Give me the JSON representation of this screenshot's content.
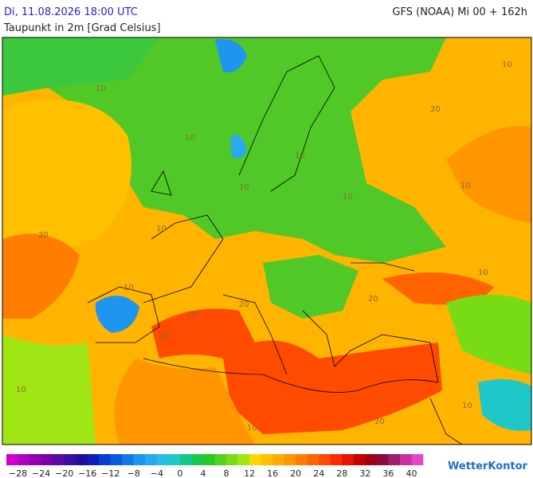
{
  "header": {
    "datetime": "Di, 11.08.2026 18:00 UTC",
    "model": "GFS (NOAA) Mi 00 + 162h",
    "parameter": "Taupunkt in 2m [Grad Celsius]"
  },
  "map": {
    "contour_labels": [
      "10",
      "10",
      "10",
      "10",
      "10",
      "10",
      "10",
      "10",
      "10",
      "10",
      "20",
      "20",
      "20",
      "20",
      "10",
      "10",
      "10",
      "20",
      "10",
      "10"
    ]
  },
  "colorbar": {
    "labels": [
      "−28",
      "−24",
      "−20",
      "−16",
      "−12",
      "−8",
      "−4",
      "0",
      "4",
      "8",
      "12",
      "16",
      "20",
      "24",
      "28",
      "32",
      "36",
      "40"
    ],
    "colors": [
      "#d100d1",
      "#b000c0",
      "#9400b0",
      "#7a00a6",
      "#5e0aa0",
      "#3a0f9e",
      "#1e109c",
      "#0a20b8",
      "#0a3cd0",
      "#0a5ae0",
      "#1478e8",
      "#1e96f0",
      "#28aaf0",
      "#28bde6",
      "#1ec8c8",
      "#14c88c",
      "#14c850",
      "#28c828",
      "#50d21e",
      "#78dc14",
      "#a0e614",
      "#ffd700",
      "#ffc000",
      "#ffaa00",
      "#ff9600",
      "#ff7d00",
      "#ff6400",
      "#ff4b00",
      "#ff2800",
      "#e61400",
      "#c80000",
      "#a00014",
      "#8c0a3c",
      "#a01e6e",
      "#c832a0",
      "#e646c8"
    ]
  },
  "branding": {
    "logo": "WetterKontor"
  }
}
